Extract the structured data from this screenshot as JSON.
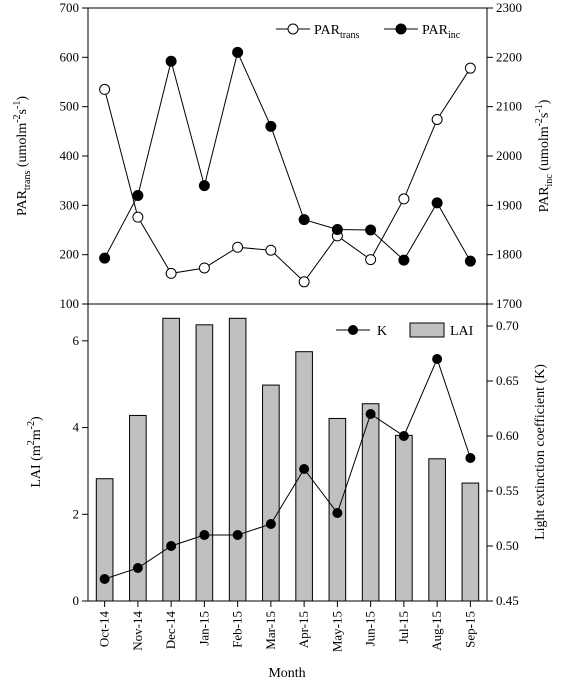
{
  "chart_data": [
    {
      "type": "line",
      "categories": [
        "Oct-14",
        "Nov-14",
        "Dec-14",
        "Jan-15",
        "Feb-15",
        "Mar-15",
        "Apr-15",
        "May-15",
        "Jun-15",
        "Jul-15",
        "Aug-15",
        "Sep-15"
      ],
      "series": [
        {
          "name": "PARtrans",
          "axis": "left",
          "marker": "open-circle",
          "values": [
            535,
            276,
            162,
            173,
            215,
            209,
            145,
            238,
            190,
            313,
            474,
            578
          ]
        },
        {
          "name": "PARinc",
          "axis": "right",
          "marker": "filled-circle",
          "values": [
            1793,
            1920,
            2192,
            1940,
            2210,
            2060,
            1871,
            1851,
            1850,
            1789,
            1905,
            1787
          ]
        }
      ],
      "ylabel_left": {
        "main": "PAR",
        "sub": "trans",
        "unit": " (umolm",
        "sup": "-2",
        "unit2": "s",
        "sup2": "-1",
        "close": ")"
      },
      "ylabel_right": {
        "main": "PAR",
        "sub": "inc",
        "unit": " (umolm",
        "sup": "-2",
        "unit2": "s",
        "sup2": "-1",
        "close": ")"
      },
      "ylim_left": [
        100,
        700
      ],
      "ylim_right": [
        1700,
        2300
      ],
      "yticks_left": [
        "100",
        "200",
        "300",
        "400",
        "500",
        "600",
        "700"
      ],
      "yticks_right": [
        "1700",
        "1800",
        "1900",
        "2000",
        "2100",
        "2200",
        "2300"
      ],
      "legend": [
        {
          "main": "PAR",
          "sub": "trans"
        },
        {
          "main": "PAR",
          "sub": "inc"
        }
      ],
      "legend_position": "top-right",
      "grid": false
    },
    {
      "type": "bar",
      "categories": [
        "Oct-14",
        "Nov-14",
        "Dec-14",
        "Jan-15",
        "Feb-15",
        "Mar-15",
        "Apr-15",
        "May-15",
        "Jun-15",
        "Jul-15",
        "Aug-15",
        "Sep-15"
      ],
      "series": [
        {
          "name": "LAI",
          "axis": "left",
          "kind": "bar",
          "color": "#c0c0c0",
          "values": [
            2.82,
            4.28,
            6.52,
            6.37,
            6.52,
            4.98,
            5.75,
            4.21,
            4.55,
            3.82,
            3.28,
            2.72
          ]
        },
        {
          "name": "K",
          "axis": "right",
          "kind": "line",
          "marker": "filled-circle",
          "values": [
            0.47,
            0.48,
            0.5,
            0.51,
            0.51,
            0.52,
            0.57,
            0.53,
            0.62,
            0.6,
            0.67,
            0.58
          ]
        }
      ],
      "xlabel": "Month",
      "ylabel_left": {
        "main": "LAI (m",
        "sup": "2",
        "mid": "m",
        "sup2": "-2",
        "close": ")"
      },
      "ylabel_right": "Light extinction coefficient (K)",
      "ylim_left": [
        0,
        6.85
      ],
      "ylim_right": [
        0.45,
        0.72
      ],
      "yticks_left": [
        "0",
        "2",
        "4",
        "6"
      ],
      "yticks_right": [
        "0.45",
        "0.50",
        "0.55",
        "0.60",
        "0.65",
        "0.70"
      ],
      "legend": [
        "K",
        "LAI"
      ],
      "legend_position": "top-right",
      "grid": false
    }
  ]
}
